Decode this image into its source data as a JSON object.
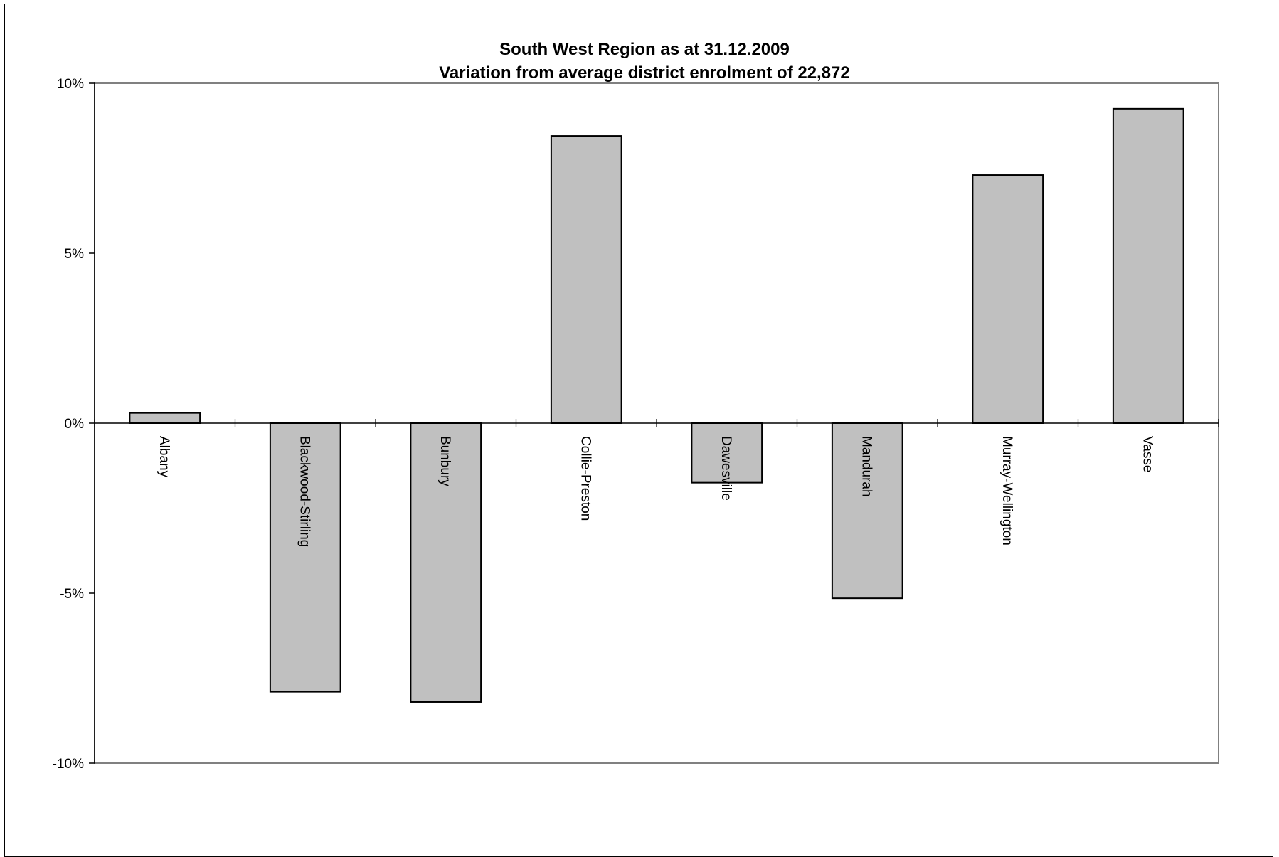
{
  "chart_data": {
    "type": "bar",
    "title": "South West Region as at 31.12.2009",
    "subtitle": "Variation from average district enrolment of 22,872",
    "xlabel": "",
    "ylabel": "",
    "categories": [
      "Albany",
      "Blackwood-Stirling",
      "Bunbury",
      "Collie-Preston",
      "Dawesville",
      "Mandurah",
      "Murray-Wellington",
      "Vasse"
    ],
    "values": [
      0.3,
      -7.9,
      -8.2,
      8.45,
      -1.75,
      -5.15,
      7.3,
      9.25
    ],
    "ylim": [
      -10,
      10
    ],
    "yticks": [
      10,
      5,
      0,
      -5,
      -10
    ],
    "ytick_labels": [
      "10%",
      "5%",
      "0%",
      "-5%",
      "-10%"
    ],
    "grid": false,
    "legend": "none",
    "colors": {
      "bar_fill": "#c0c0c0",
      "bar_stroke": "#000000",
      "plot_border": "#808080",
      "axis": "#000000"
    }
  }
}
